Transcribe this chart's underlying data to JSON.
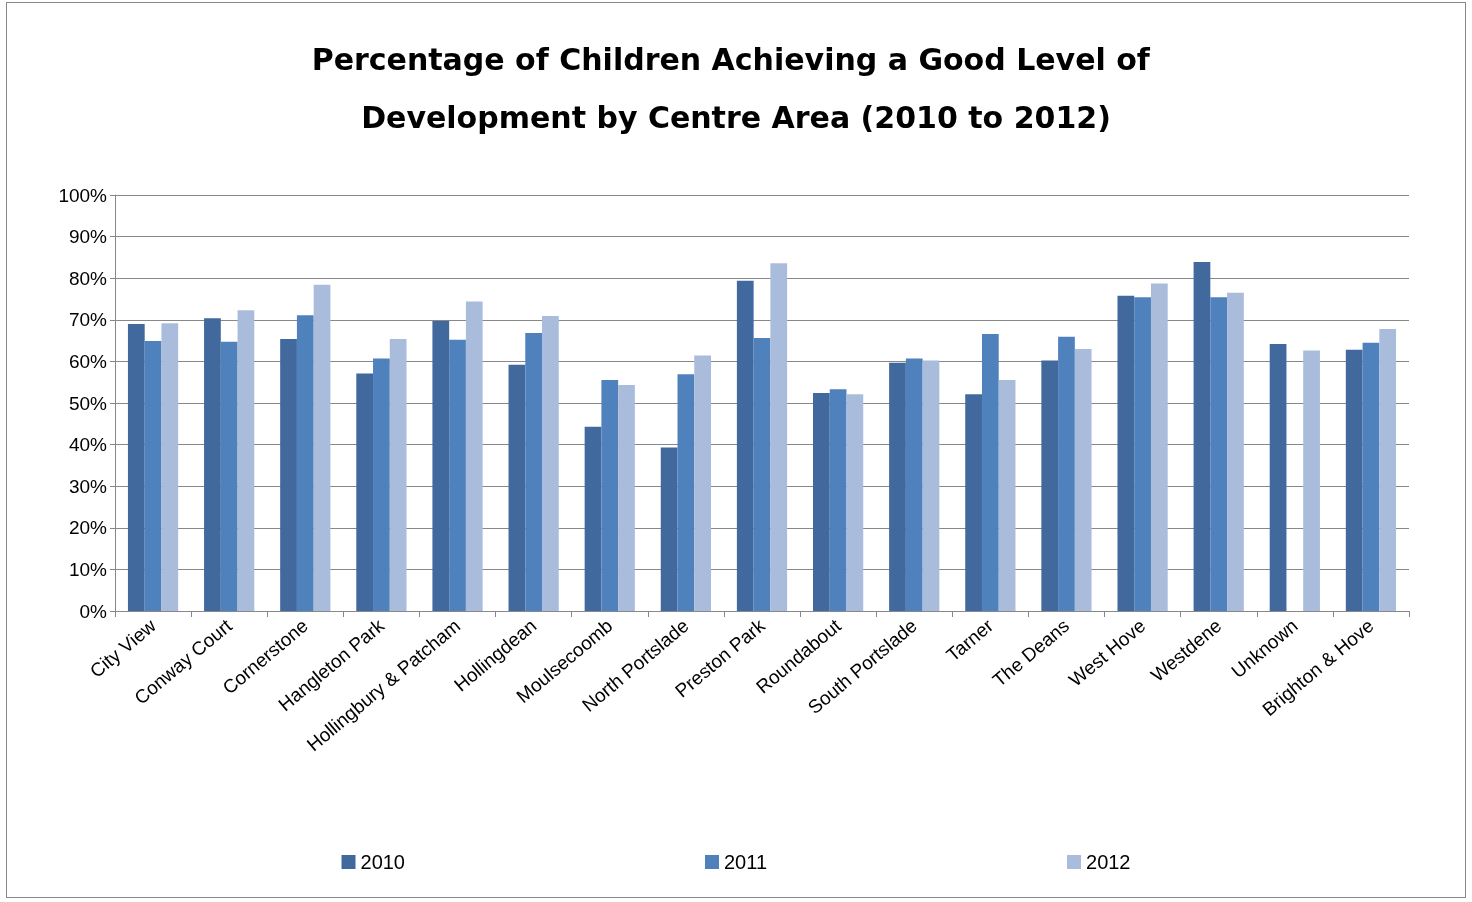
{
  "chart_data": {
    "type": "bar",
    "title": "Percentage of Children Achieving a Good Level of Development by Centre Area (2010 to 2012)",
    "categories": [
      "City View",
      "Conway Court",
      "Cornerstone",
      "Hangleton Park",
      "Hollingbury & Patcham",
      "Hollingdean",
      "Moulsecoomb",
      "North Portslade",
      "Preston Park",
      "Roundabout",
      "South Portslade",
      "Tarner",
      "The Deans",
      "West Hove",
      "Westdene",
      "Unknown",
      "Brighton & Hove"
    ],
    "series": [
      {
        "name": "2010",
        "color": "#41699e",
        "values": [
          69,
          70.4,
          65.4,
          57.1,
          69.7,
          59.2,
          44.3,
          39.3,
          79.4,
          52.4,
          59.7,
          52.1,
          60.2,
          75.8,
          83.9,
          64.2,
          62.8
        ]
      },
      {
        "name": "2011",
        "color": "#4f81bd",
        "values": [
          64.9,
          64.7,
          71.1,
          60.7,
          65.2,
          66.8,
          55.5,
          56.9,
          65.6,
          53.3,
          60.7,
          66.6,
          65.9,
          75.4,
          75.4,
          null,
          64.5
        ]
      },
      {
        "name": "2012",
        "color": "#aabcdc",
        "values": [
          69.2,
          72.3,
          78.4,
          65.4,
          74.4,
          70.9,
          54.3,
          61.4,
          83.6,
          52.1,
          60.2,
          55.5,
          63,
          78.7,
          76.5,
          62.6,
          67.8
        ]
      }
    ],
    "ylim": [
      0,
      100
    ],
    "yticks": [
      {
        "value": 0,
        "label": "0%"
      },
      {
        "value": 10,
        "label": "10%"
      },
      {
        "value": 20,
        "label": "20%"
      },
      {
        "value": 30,
        "label": "30%"
      },
      {
        "value": 40,
        "label": "40%"
      },
      {
        "value": 50,
        "label": "50%"
      },
      {
        "value": 60,
        "label": "60%"
      },
      {
        "value": 70,
        "label": "70%"
      },
      {
        "value": 80,
        "label": "80%"
      },
      {
        "value": 90,
        "label": "90%"
      },
      {
        "value": 100,
        "label": "100%"
      }
    ],
    "grid": "y",
    "legend": "bottom"
  }
}
